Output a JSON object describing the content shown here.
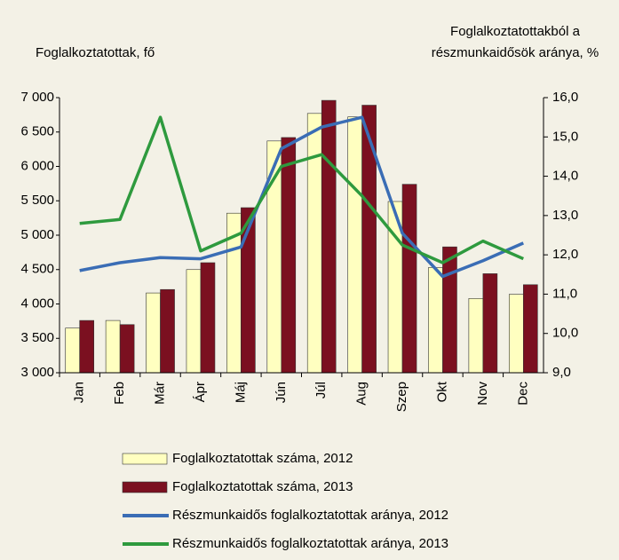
{
  "chart_data": {
    "type": "bar_line",
    "y_label": "Foglalkoztatottak, fő",
    "y2_label": [
      "Foglalkoztatottakból a",
      "részmunkaidősök aránya, %"
    ],
    "categories": [
      "Jan",
      "Feb",
      "Már",
      "Ápr",
      "Máj",
      "Jún",
      "Júl",
      "Aug",
      "Szep",
      "Okt",
      "Nov",
      "Dec"
    ],
    "series": [
      {
        "name": "Foglalkoztatottak száma, 2012",
        "kind": "bar",
        "color": "#ffffc0",
        "values": [
          3650,
          3760,
          4160,
          4500,
          5320,
          6370,
          6770,
          6720,
          5490,
          4530,
          4080,
          4140
        ]
      },
      {
        "name": "Foglalkoztatottak száma, 2013",
        "kind": "bar",
        "color": "#7b1020",
        "values": [
          3760,
          3700,
          4210,
          4600,
          5400,
          6420,
          6960,
          6890,
          5740,
          4830,
          4440,
          4280
        ]
      },
      {
        "name": "Részmunkaidős foglalkoztatottak aránya, 2012",
        "kind": "line",
        "axis": "y2",
        "color": "#3a6db5",
        "values": [
          11.6,
          11.8,
          11.93,
          11.9,
          12.2,
          14.7,
          15.25,
          15.5,
          12.55,
          11.45,
          11.85,
          12.3
        ]
      },
      {
        "name": "Részmunkaidős foglalkoztatottak aránya, 2013",
        "kind": "line",
        "axis": "y2",
        "color": "#2e9a3e",
        "values": [
          12.8,
          12.9,
          15.5,
          12.1,
          12.55,
          14.25,
          14.55,
          13.5,
          12.25,
          11.8,
          12.35,
          11.9
        ]
      }
    ],
    "ylim": [
      3000,
      7000
    ],
    "yticks": [
      {
        "value": 3000,
        "label": "3 000"
      },
      {
        "value": 3500,
        "label": "3 500"
      },
      {
        "value": 4000,
        "label": "4 000"
      },
      {
        "value": 4500,
        "label": "4 500"
      },
      {
        "value": 5000,
        "label": "5 000"
      },
      {
        "value": 5500,
        "label": "5 500"
      },
      {
        "value": 6000,
        "label": "6 000"
      },
      {
        "value": 6500,
        "label": "6 500"
      },
      {
        "value": 7000,
        "label": "7 000"
      }
    ],
    "y2lim": [
      9,
      16
    ],
    "y2ticks": [
      {
        "value": 9,
        "label": "9,0"
      },
      {
        "value": 10,
        "label": "10,0"
      },
      {
        "value": 11,
        "label": "11,0"
      },
      {
        "value": 12,
        "label": "12,0"
      },
      {
        "value": 13,
        "label": "13,0"
      },
      {
        "value": 14,
        "label": "14,0"
      },
      {
        "value": 15,
        "label": "15,0"
      },
      {
        "value": 16,
        "label": "16,0"
      }
    ],
    "grid": false,
    "legend": "bottom"
  }
}
